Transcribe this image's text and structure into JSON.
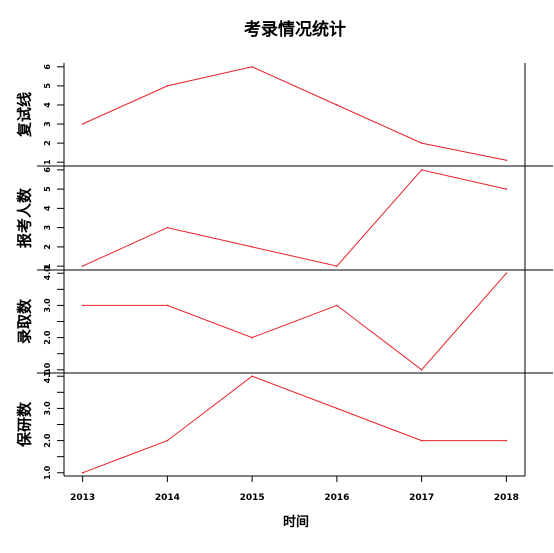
{
  "chart_data": {
    "type": "line",
    "title": "考录情况统计",
    "xlabel": "时间",
    "x": [
      2013,
      2014,
      2015,
      2016,
      2017,
      2018
    ],
    "x_tick_labels": [
      "2013",
      "2014",
      "2015",
      "2016",
      "2017",
      "2018"
    ],
    "line_color": "#e8202a",
    "grid": false,
    "series": [
      {
        "name": "复试线",
        "values": [
          3,
          5,
          6,
          4,
          2,
          1.1
        ],
        "ylim": [
          0.8,
          6.2
        ],
        "ticks": [
          1,
          2,
          3,
          4,
          5,
          6
        ],
        "tick_labels": [
          "1",
          "2",
          "3",
          "4",
          "5",
          "6"
        ]
      },
      {
        "name": "报考人数",
        "values": [
          1,
          3,
          2,
          1,
          6,
          5
        ],
        "ylim": [
          0.8,
          6.2
        ],
        "ticks": [
          1,
          2,
          3,
          4,
          5,
          6
        ],
        "tick_labels": [
          "1",
          "2",
          "3",
          "4",
          "5",
          "6"
        ]
      },
      {
        "name": "录取数",
        "values": [
          3,
          3,
          2,
          3,
          1,
          4
        ],
        "ylim": [
          0.9,
          4.1
        ],
        "ticks": [
          1,
          1.5,
          2,
          2.5,
          3,
          3.5,
          4
        ],
        "tick_labels": [
          "1.0",
          "",
          "2.0",
          "",
          "3.0",
          "",
          "4.0"
        ]
      },
      {
        "name": "保研数",
        "values": [
          1,
          2,
          4,
          3,
          2,
          2
        ],
        "ylim": [
          0.9,
          4.1
        ],
        "ticks": [
          1,
          1.5,
          2,
          2.5,
          3,
          3.5,
          4
        ],
        "tick_labels": [
          "1.0",
          "",
          "2.0",
          "",
          "3.0",
          "",
          "4.0"
        ]
      }
    ]
  }
}
